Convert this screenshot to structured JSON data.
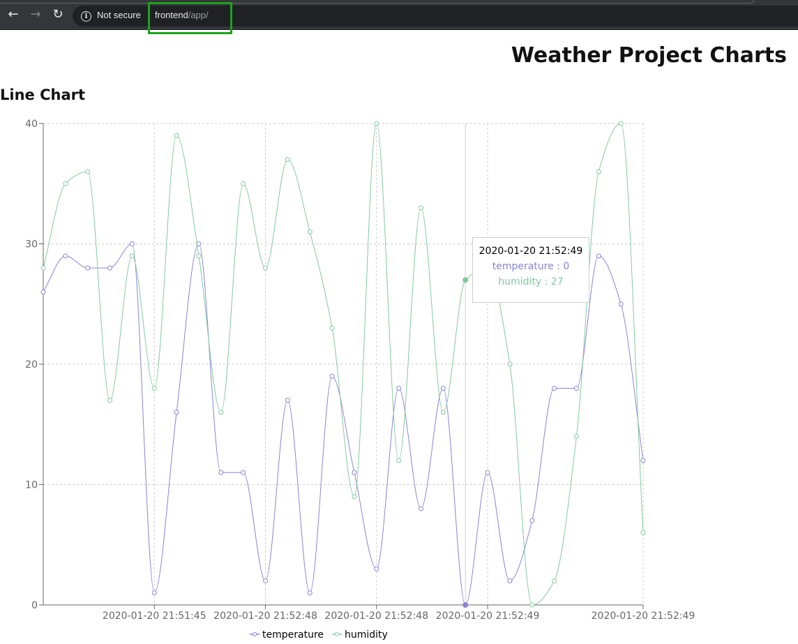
{
  "browser": {
    "security_label": "Not secure",
    "url_host": "frontend",
    "url_path": "/app/"
  },
  "page": {
    "title": "Weather Project Charts",
    "section_title": "Line Chart"
  },
  "colors": {
    "temperature": "#8884d8",
    "humidity": "#82ca9d",
    "highlight_box": "#1aa31a"
  },
  "tooltip": {
    "label": "2020-01-20 21:52:49",
    "items": [
      {
        "name": "temperature",
        "separator": " : ",
        "value": "0",
        "color": "#8884d8"
      },
      {
        "name": "humidity",
        "separator": " : ",
        "value": "27",
        "color": "#82ca9d"
      }
    ],
    "active_index": 19
  },
  "chart_data": {
    "type": "line",
    "ylim": [
      0,
      40
    ],
    "y_ticks": [
      0,
      10,
      20,
      30,
      40
    ],
    "grid": true,
    "legend_position": "bottom",
    "x_tick_labels": [
      {
        "index": 5,
        "label": "2020-01-20 21:51:45"
      },
      {
        "index": 10,
        "label": "2020-01-20 21:52:48"
      },
      {
        "index": 15,
        "label": "2020-01-20 21:52:48"
      },
      {
        "index": 20,
        "label": "2020-01-20 21:52:49"
      },
      {
        "index": 27,
        "label": "2020-01-20 21:52:49"
      }
    ],
    "series": [
      {
        "name": "temperature",
        "color": "#8884d8",
        "values": [
          26,
          29,
          28,
          28,
          30,
          1,
          16,
          30,
          11,
          11,
          2,
          17,
          1,
          19,
          11,
          3,
          18,
          8,
          18,
          0,
          11,
          2,
          7,
          18,
          18,
          29,
          25,
          12
        ]
      },
      {
        "name": "humidity",
        "color": "#82ca9d",
        "values": [
          28,
          35,
          36,
          17,
          29,
          18,
          39,
          29,
          16,
          35,
          28,
          37,
          31,
          23,
          9,
          40,
          12,
          33,
          16,
          27,
          28,
          20,
          0,
          2,
          14,
          36,
          40,
          6
        ]
      }
    ]
  }
}
